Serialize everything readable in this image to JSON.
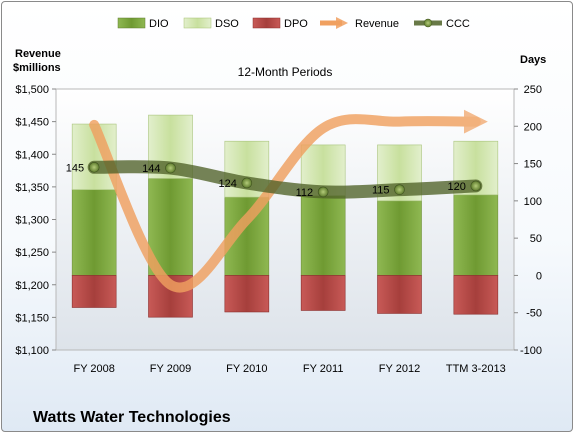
{
  "chart_data": {
    "type": "bar",
    "title": "Watts Water Technologies",
    "subtitle": "12-Month Periods",
    "categories": [
      "FY 2008",
      "FY 2009",
      "FY 2010",
      "FY 2011",
      "FY 2012",
      "TTM 3-2013"
    ],
    "y_left": {
      "label_line1": "Revenue",
      "label_line2": "$millions",
      "range": [
        1100,
        1500
      ],
      "ticks": [
        1100,
        1150,
        1200,
        1250,
        1300,
        1350,
        1400,
        1450,
        1500
      ],
      "tick_labels": [
        "$1,100",
        "$1,150",
        "$1,200",
        "$1,250",
        "$1,300",
        "$1,350",
        "$1,400",
        "$1,450",
        "$1,500"
      ]
    },
    "y_right": {
      "label": "Days",
      "range": [
        -100,
        250
      ],
      "ticks": [
        -100,
        -50,
        0,
        50,
        100,
        150,
        200,
        250
      ],
      "tick_labels": [
        "-100",
        "-50",
        "0",
        "50",
        "100",
        "150",
        "200",
        "250"
      ]
    },
    "series": [
      {
        "name": "DIO",
        "type": "stacked-bar",
        "axis": "right",
        "color": "#7ba23e",
        "values": [
          115,
          130,
          105,
          107,
          100,
          108
        ]
      },
      {
        "name": "DSO",
        "type": "stacked-bar",
        "axis": "right",
        "color": "#d4e8b0",
        "values": [
          88,
          85,
          75,
          68,
          75,
          72
        ]
      },
      {
        "name": "DPO",
        "type": "negative-bar",
        "axis": "right",
        "color": "#c0504d",
        "values": [
          -43,
          -56,
          -49,
          -47,
          -51,
          -52
        ]
      },
      {
        "name": "Revenue",
        "type": "line",
        "axis": "left",
        "color": "#f0a060",
        "values": [
          1445,
          1200,
          1300,
          1440,
          1450,
          1450
        ]
      },
      {
        "name": "CCC",
        "type": "line-markers",
        "axis": "right",
        "color": "#4f6228",
        "values": [
          145,
          144,
          124,
          112,
          115,
          120
        ],
        "labels": [
          "145",
          "144",
          "124",
          "112",
          "115",
          "120"
        ]
      }
    ],
    "legend_position": "top",
    "grid": false
  }
}
